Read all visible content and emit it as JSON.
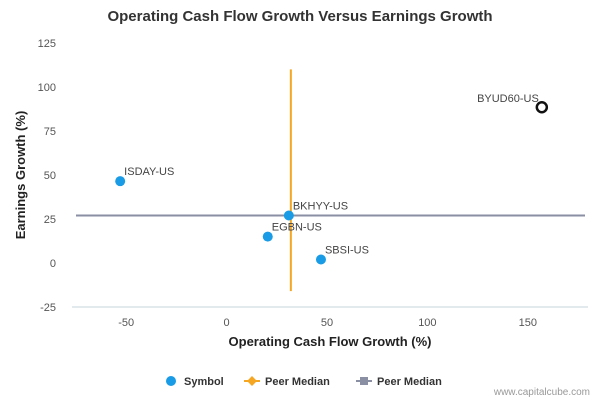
{
  "chart_data": {
    "type": "scatter",
    "title": "Operating Cash Flow Growth Versus Earnings Growth",
    "xlabel": "Operating Cash Flow Growth (%)",
    "ylabel": "Earnings Growth (%)",
    "xlim": [
      -77,
      180
    ],
    "ylim": [
      -25,
      125
    ],
    "xticks": [
      -50,
      0,
      50,
      100,
      150
    ],
    "yticks": [
      -25,
      0,
      25,
      50,
      75,
      100,
      125
    ],
    "grid": false,
    "legend_position": "bottom-center",
    "points": [
      {
        "label": "ISDAY-US",
        "x": -53,
        "y": 46.5
      },
      {
        "label": "BKHYY-US",
        "x": 31,
        "y": 27
      },
      {
        "label": "EGBN-US",
        "x": 20.5,
        "y": 15
      },
      {
        "label": "SBSI-US",
        "x": 47,
        "y": 2
      },
      {
        "label": "BYUD60-US",
        "x": 157,
        "y": 88.5,
        "highlight": true
      }
    ],
    "peer_median_x": {
      "value": 32,
      "y_range": [
        -16,
        110
      ]
    },
    "peer_median_y": {
      "value": 27
    },
    "legend": [
      {
        "label": "Symbol",
        "marker": "circle",
        "color": "#1a9be6"
      },
      {
        "label": "Peer Median",
        "marker": "diamond-line",
        "color": "#f5a623"
      },
      {
        "label": "Peer Median",
        "marker": "square-line",
        "color": "#8a8fa3"
      }
    ],
    "colors": {
      "symbol": "#1a9be6",
      "median_x": "#f5a623",
      "median_y": "#8a8fa3",
      "highlight_stroke": "#111111"
    },
    "credit": "www.capitalcube.com"
  }
}
